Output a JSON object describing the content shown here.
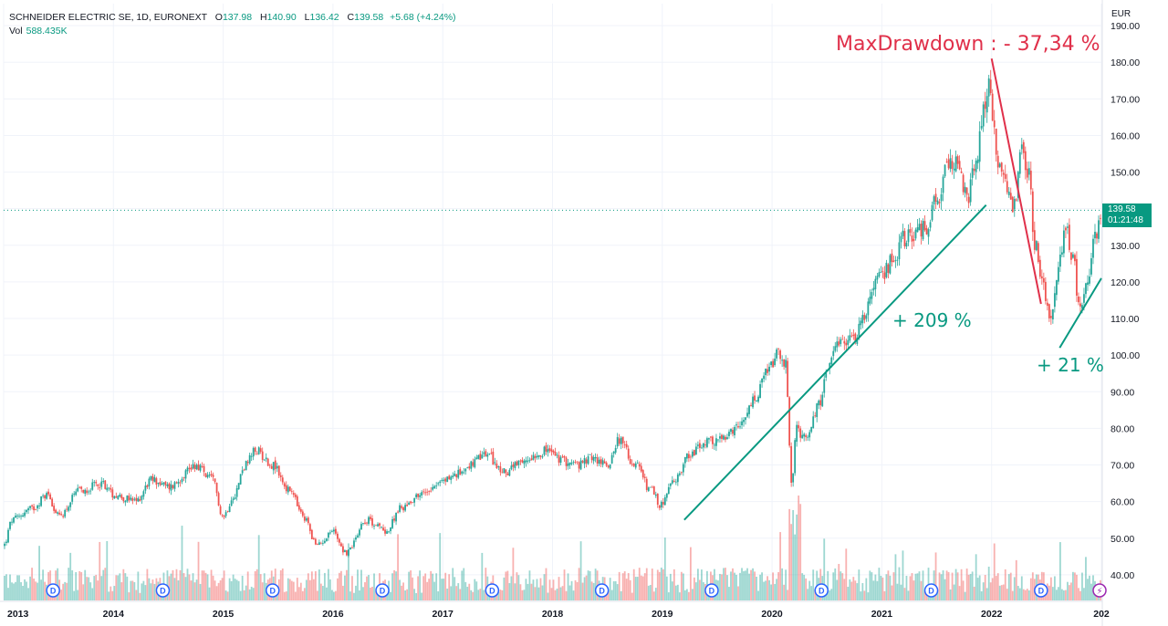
{
  "header": {
    "symbol": "SCHNEIDER ELECTRIC SE, 1D, EURONEXT",
    "o_label": "O",
    "o_value": "137.98",
    "h_label": "H",
    "h_value": "140.90",
    "l_label": "L",
    "l_value": "136.42",
    "c_label": "C",
    "c_value": "139.58",
    "change": "+5.68 (+4.24%)",
    "vol_label": "Vol",
    "vol_value": "588.435K"
  },
  "currency": "EUR",
  "current_price_label": {
    "price": "139.58",
    "countdown": "01:21:48"
  },
  "annotations": {
    "max_drawdown": "MaxDrawdown : - 37,34 %",
    "gain_1": "+ 209 %",
    "gain_2": "+ 21 %"
  },
  "colors": {
    "up": "#26a69a",
    "down": "#ef5350",
    "accent": "#089981",
    "annotation_red": "#e0304a",
    "grid": "#f0f3fa"
  },
  "chart_data": {
    "type": "candlestick",
    "title": "SCHNEIDER ELECTRIC SE, 1D, EURONEXT",
    "ylabel": "EUR",
    "xlabel": "",
    "ylim": [
      33,
      196
    ],
    "xlim": [
      2013.0,
      2023.0
    ],
    "y_ticks": [
      "40.00",
      "50.00",
      "60.00",
      "70.00",
      "80.00",
      "90.00",
      "100.00",
      "110.00",
      "120.00",
      "130.00",
      "140.00",
      "150.00",
      "160.00",
      "170.00",
      "180.00",
      "190.00"
    ],
    "x_ticks": [
      "2013",
      "2014",
      "2015",
      "2016",
      "2017",
      "2018",
      "2019",
      "2020",
      "2021",
      "2022",
      "202"
    ],
    "price_path": [
      [
        2013.0,
        48
      ],
      [
        2013.08,
        55
      ],
      [
        2013.25,
        58
      ],
      [
        2013.4,
        62
      ],
      [
        2013.5,
        56
      ],
      [
        2013.7,
        63
      ],
      [
        2013.9,
        65
      ],
      [
        2014.0,
        62
      ],
      [
        2014.2,
        60
      ],
      [
        2014.35,
        66
      ],
      [
        2014.5,
        64
      ],
      [
        2014.75,
        70
      ],
      [
        2014.9,
        66
      ],
      [
        2015.0,
        56
      ],
      [
        2015.1,
        62
      ],
      [
        2015.2,
        70
      ],
      [
        2015.3,
        74
      ],
      [
        2015.45,
        70
      ],
      [
        2015.6,
        63
      ],
      [
        2015.75,
        55
      ],
      [
        2015.85,
        48
      ],
      [
        2016.0,
        52
      ],
      [
        2016.12,
        46
      ],
      [
        2016.3,
        55
      ],
      [
        2016.5,
        52
      ],
      [
        2016.6,
        58
      ],
      [
        2016.8,
        62
      ],
      [
        2016.95,
        65
      ],
      [
        2017.1,
        67
      ],
      [
        2017.25,
        70
      ],
      [
        2017.4,
        73
      ],
      [
        2017.55,
        68
      ],
      [
        2017.7,
        70
      ],
      [
        2017.85,
        73
      ],
      [
        2017.95,
        74
      ],
      [
        2018.1,
        71
      ],
      [
        2018.25,
        70
      ],
      [
        2018.35,
        72
      ],
      [
        2018.5,
        70
      ],
      [
        2018.6,
        77
      ],
      [
        2018.75,
        70
      ],
      [
        2018.9,
        63
      ],
      [
        2018.98,
        59
      ],
      [
        2019.1,
        65
      ],
      [
        2019.25,
        73
      ],
      [
        2019.4,
        76
      ],
      [
        2019.55,
        77
      ],
      [
        2019.7,
        80
      ],
      [
        2019.85,
        88
      ],
      [
        2019.95,
        95
      ],
      [
        2020.05,
        100
      ],
      [
        2020.12,
        98
      ],
      [
        2020.18,
        65
      ],
      [
        2020.22,
        80
      ],
      [
        2020.3,
        77
      ],
      [
        2020.42,
        86
      ],
      [
        2020.5,
        96
      ],
      [
        2020.62,
        103
      ],
      [
        2020.75,
        105
      ],
      [
        2020.82,
        110
      ],
      [
        2020.92,
        118
      ],
      [
        2021.0,
        122
      ],
      [
        2021.1,
        126
      ],
      [
        2021.2,
        132
      ],
      [
        2021.3,
        133
      ],
      [
        2021.4,
        135
      ],
      [
        2021.5,
        142
      ],
      [
        2021.6,
        151
      ],
      [
        2021.7,
        153
      ],
      [
        2021.78,
        142
      ],
      [
        2021.85,
        152
      ],
      [
        2021.93,
        168
      ],
      [
        2021.98,
        174
      ],
      [
        2022.05,
        154
      ],
      [
        2022.12,
        147
      ],
      [
        2022.2,
        140
      ],
      [
        2022.27,
        155
      ],
      [
        2022.33,
        150
      ],
      [
        2022.4,
        130
      ],
      [
        2022.47,
        118
      ],
      [
        2022.54,
        110
      ],
      [
        2022.6,
        123
      ],
      [
        2022.68,
        134
      ],
      [
        2022.74,
        127
      ],
      [
        2022.8,
        113
      ],
      [
        2022.87,
        120
      ],
      [
        2022.95,
        133
      ],
      [
        2023.0,
        139.58
      ]
    ],
    "dividend_markers_x": [
      2013.45,
      2014.45,
      2015.45,
      2016.45,
      2017.45,
      2018.45,
      2019.45,
      2020.45,
      2021.45,
      2022.45
    ],
    "dividend_label": "D",
    "lines": [
      {
        "name": "+ 209 %",
        "from": [
          2019.2,
          55
        ],
        "to": [
          2021.95,
          141
        ],
        "color": "#089981"
      },
      {
        "name": "MaxDrawdown",
        "from": [
          2022.0,
          181
        ],
        "to": [
          2022.45,
          114
        ],
        "color": "#e0304a"
      },
      {
        "name": "+ 21 %",
        "from": [
          2022.62,
          102
        ],
        "to": [
          2023.0,
          121
        ],
        "color": "#089981"
      }
    ],
    "current_price": 139.58
  }
}
